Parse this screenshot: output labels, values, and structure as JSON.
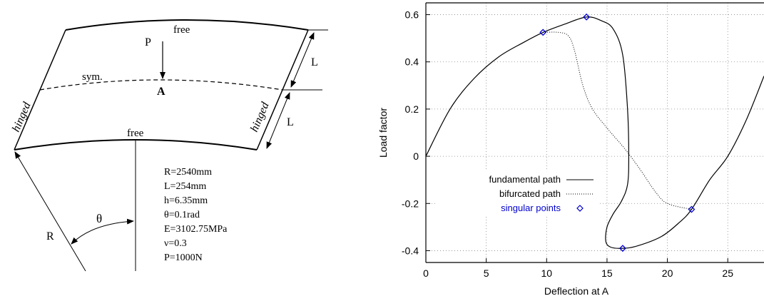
{
  "diagram": {
    "labels": {
      "free_top": "free",
      "free_bottom": "free",
      "load": "P",
      "point": "A",
      "symmetry": "sym.",
      "hinged_left": "hinged",
      "hinged_right": "hinged",
      "L_upper": "L",
      "L_lower": "L",
      "radius": "R",
      "theta": "θ"
    },
    "parameters": [
      "R=2540mm",
      "L=254mm",
      "h=6.35mm",
      "θ=0.1rad",
      "E=3102.75MPa",
      "ν=0.3",
      "P=1000N"
    ]
  },
  "chart_data": {
    "type": "line",
    "xlabel": "Deflection at A",
    "ylabel": "Load factor",
    "xlim": [
      0,
      28
    ],
    "ylim": [
      -0.45,
      0.65
    ],
    "xticks": [
      0,
      5,
      10,
      15,
      20,
      25
    ],
    "yticks": [
      -0.4,
      -0.2,
      0,
      0.2,
      0.4,
      0.6
    ],
    "xtick_labels": [
      "0",
      "5",
      "10",
      "15",
      "20",
      "25"
    ],
    "ytick_labels": [
      "-0.4",
      "-0.2",
      "0",
      "0.2",
      "0.4",
      "0.6"
    ],
    "grid": true,
    "legend_position": "lower-left",
    "colors": {
      "fundamental": "#000000",
      "bifurcated": "#000000",
      "singular": "#0000cc",
      "grid": "#888888"
    },
    "series": [
      {
        "name": "fundamental path",
        "style": "solid",
        "points": [
          [
            0,
            0
          ],
          [
            2,
            0.2
          ],
          [
            4,
            0.33
          ],
          [
            6,
            0.42
          ],
          [
            8,
            0.48
          ],
          [
            9.7,
            0.525
          ],
          [
            11.5,
            0.56
          ],
          [
            13.3,
            0.59
          ],
          [
            14.5,
            0.575
          ],
          [
            15.5,
            0.54
          ],
          [
            16.3,
            0.43
          ],
          [
            16.7,
            0.2
          ],
          [
            16.8,
            0
          ],
          [
            16.7,
            -0.12
          ],
          [
            16.2,
            -0.19
          ],
          [
            15.5,
            -0.245
          ],
          [
            15.0,
            -0.3
          ],
          [
            14.9,
            -0.36
          ],
          [
            15.3,
            -0.385
          ],
          [
            16.3,
            -0.39
          ],
          [
            17.5,
            -0.38
          ],
          [
            19.5,
            -0.34
          ],
          [
            21,
            -0.28
          ],
          [
            22,
            -0.225
          ],
          [
            23.5,
            -0.1
          ],
          [
            25,
            0
          ],
          [
            26.5,
            0.15
          ],
          [
            28,
            0.34
          ]
        ]
      },
      {
        "name": "bifurcated path",
        "style": "dotted",
        "points": [
          [
            9.7,
            0.525
          ],
          [
            11,
            0.525
          ],
          [
            11.8,
            0.51
          ],
          [
            12.3,
            0.45
          ],
          [
            13,
            0.3
          ],
          [
            13.8,
            0.2
          ],
          [
            15,
            0.12
          ],
          [
            16.5,
            0.03
          ],
          [
            17.8,
            -0.06
          ],
          [
            19,
            -0.15
          ],
          [
            20,
            -0.2
          ],
          [
            22,
            -0.225
          ]
        ]
      },
      {
        "name": "singular points",
        "style": "markers",
        "points": [
          [
            9.7,
            0.525
          ],
          [
            13.3,
            0.59
          ],
          [
            16.3,
            -0.39
          ],
          [
            22,
            -0.225
          ]
        ]
      }
    ]
  }
}
